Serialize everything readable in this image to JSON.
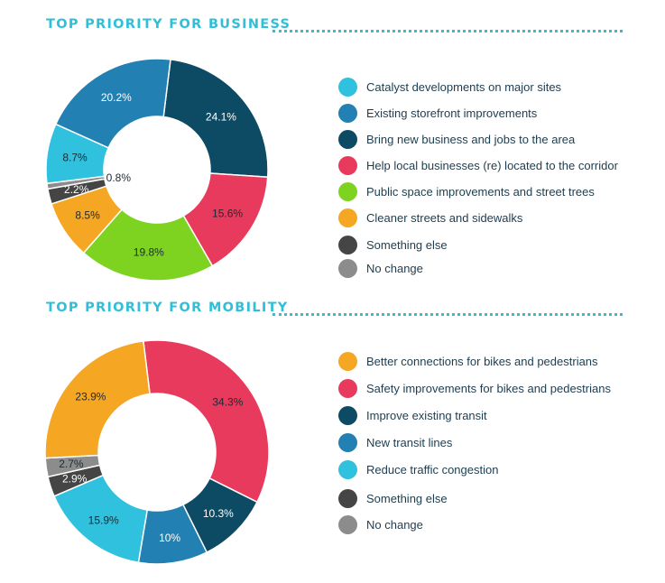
{
  "colors": {
    "catalyst": "#2fc1dd",
    "storefront": "#2280b3",
    "newbiz": "#0d4a63",
    "localbiz": "#e83a5c",
    "publicspace": "#7ed321",
    "cleaner": "#f5a623",
    "something": "#454545",
    "nochange": "#8c8c8c"
  },
  "chart_data": [
    {
      "type": "pie",
      "title": "TOP PRIORITY FOR BUSINESS",
      "categories": [
        "Catalyst developments on major sites",
        "Existing storefront improvements",
        "Bring new business and jobs to the area",
        "Help local businesses (re) located to the corridor",
        "Public space improvements and street trees",
        "Cleaner streets and sidewalks",
        "Something else",
        "No change"
      ],
      "values": [
        8.7,
        20.2,
        24.1,
        15.6,
        19.8,
        8.5,
        2.2,
        0.8
      ],
      "labels": [
        "8.7%",
        "20.2%",
        "24.1%",
        "15.6%",
        "19.8%",
        "8.5%",
        "2.2%",
        "0.8%"
      ],
      "slice_order": [
        2,
        3,
        4,
        5,
        6,
        7,
        0,
        1
      ],
      "colors": [
        "#2fc1dd",
        "#2280b3",
        "#0d4a63",
        "#e83a5c",
        "#7ed321",
        "#f5a623",
        "#454545",
        "#8c8c8c"
      ],
      "legend_placement": "right"
    },
    {
      "type": "pie",
      "title": "TOP PRIORITY FOR MOBILITY",
      "categories": [
        "Better connections for bikes and pedestrians",
        "Safety improvements for bikes and pedestrians",
        "Improve existing transit",
        "New transit lines",
        "Reduce traffic congestion",
        "Something else",
        "No change"
      ],
      "values": [
        23.9,
        34.3,
        10.3,
        10,
        15.9,
        2.9,
        2.7
      ],
      "labels": [
        "23.9%",
        "34.3%",
        "10.3%",
        "10%",
        "15.9%",
        "2.9%",
        "2.7%"
      ],
      "slice_order": [
        1,
        2,
        3,
        4,
        5,
        6,
        0
      ],
      "colors": [
        "#f5a623",
        "#e83a5c",
        "#0d4a63",
        "#2280b3",
        "#2fc1dd",
        "#454545",
        "#8c8c8c"
      ],
      "legend_placement": "right"
    }
  ]
}
